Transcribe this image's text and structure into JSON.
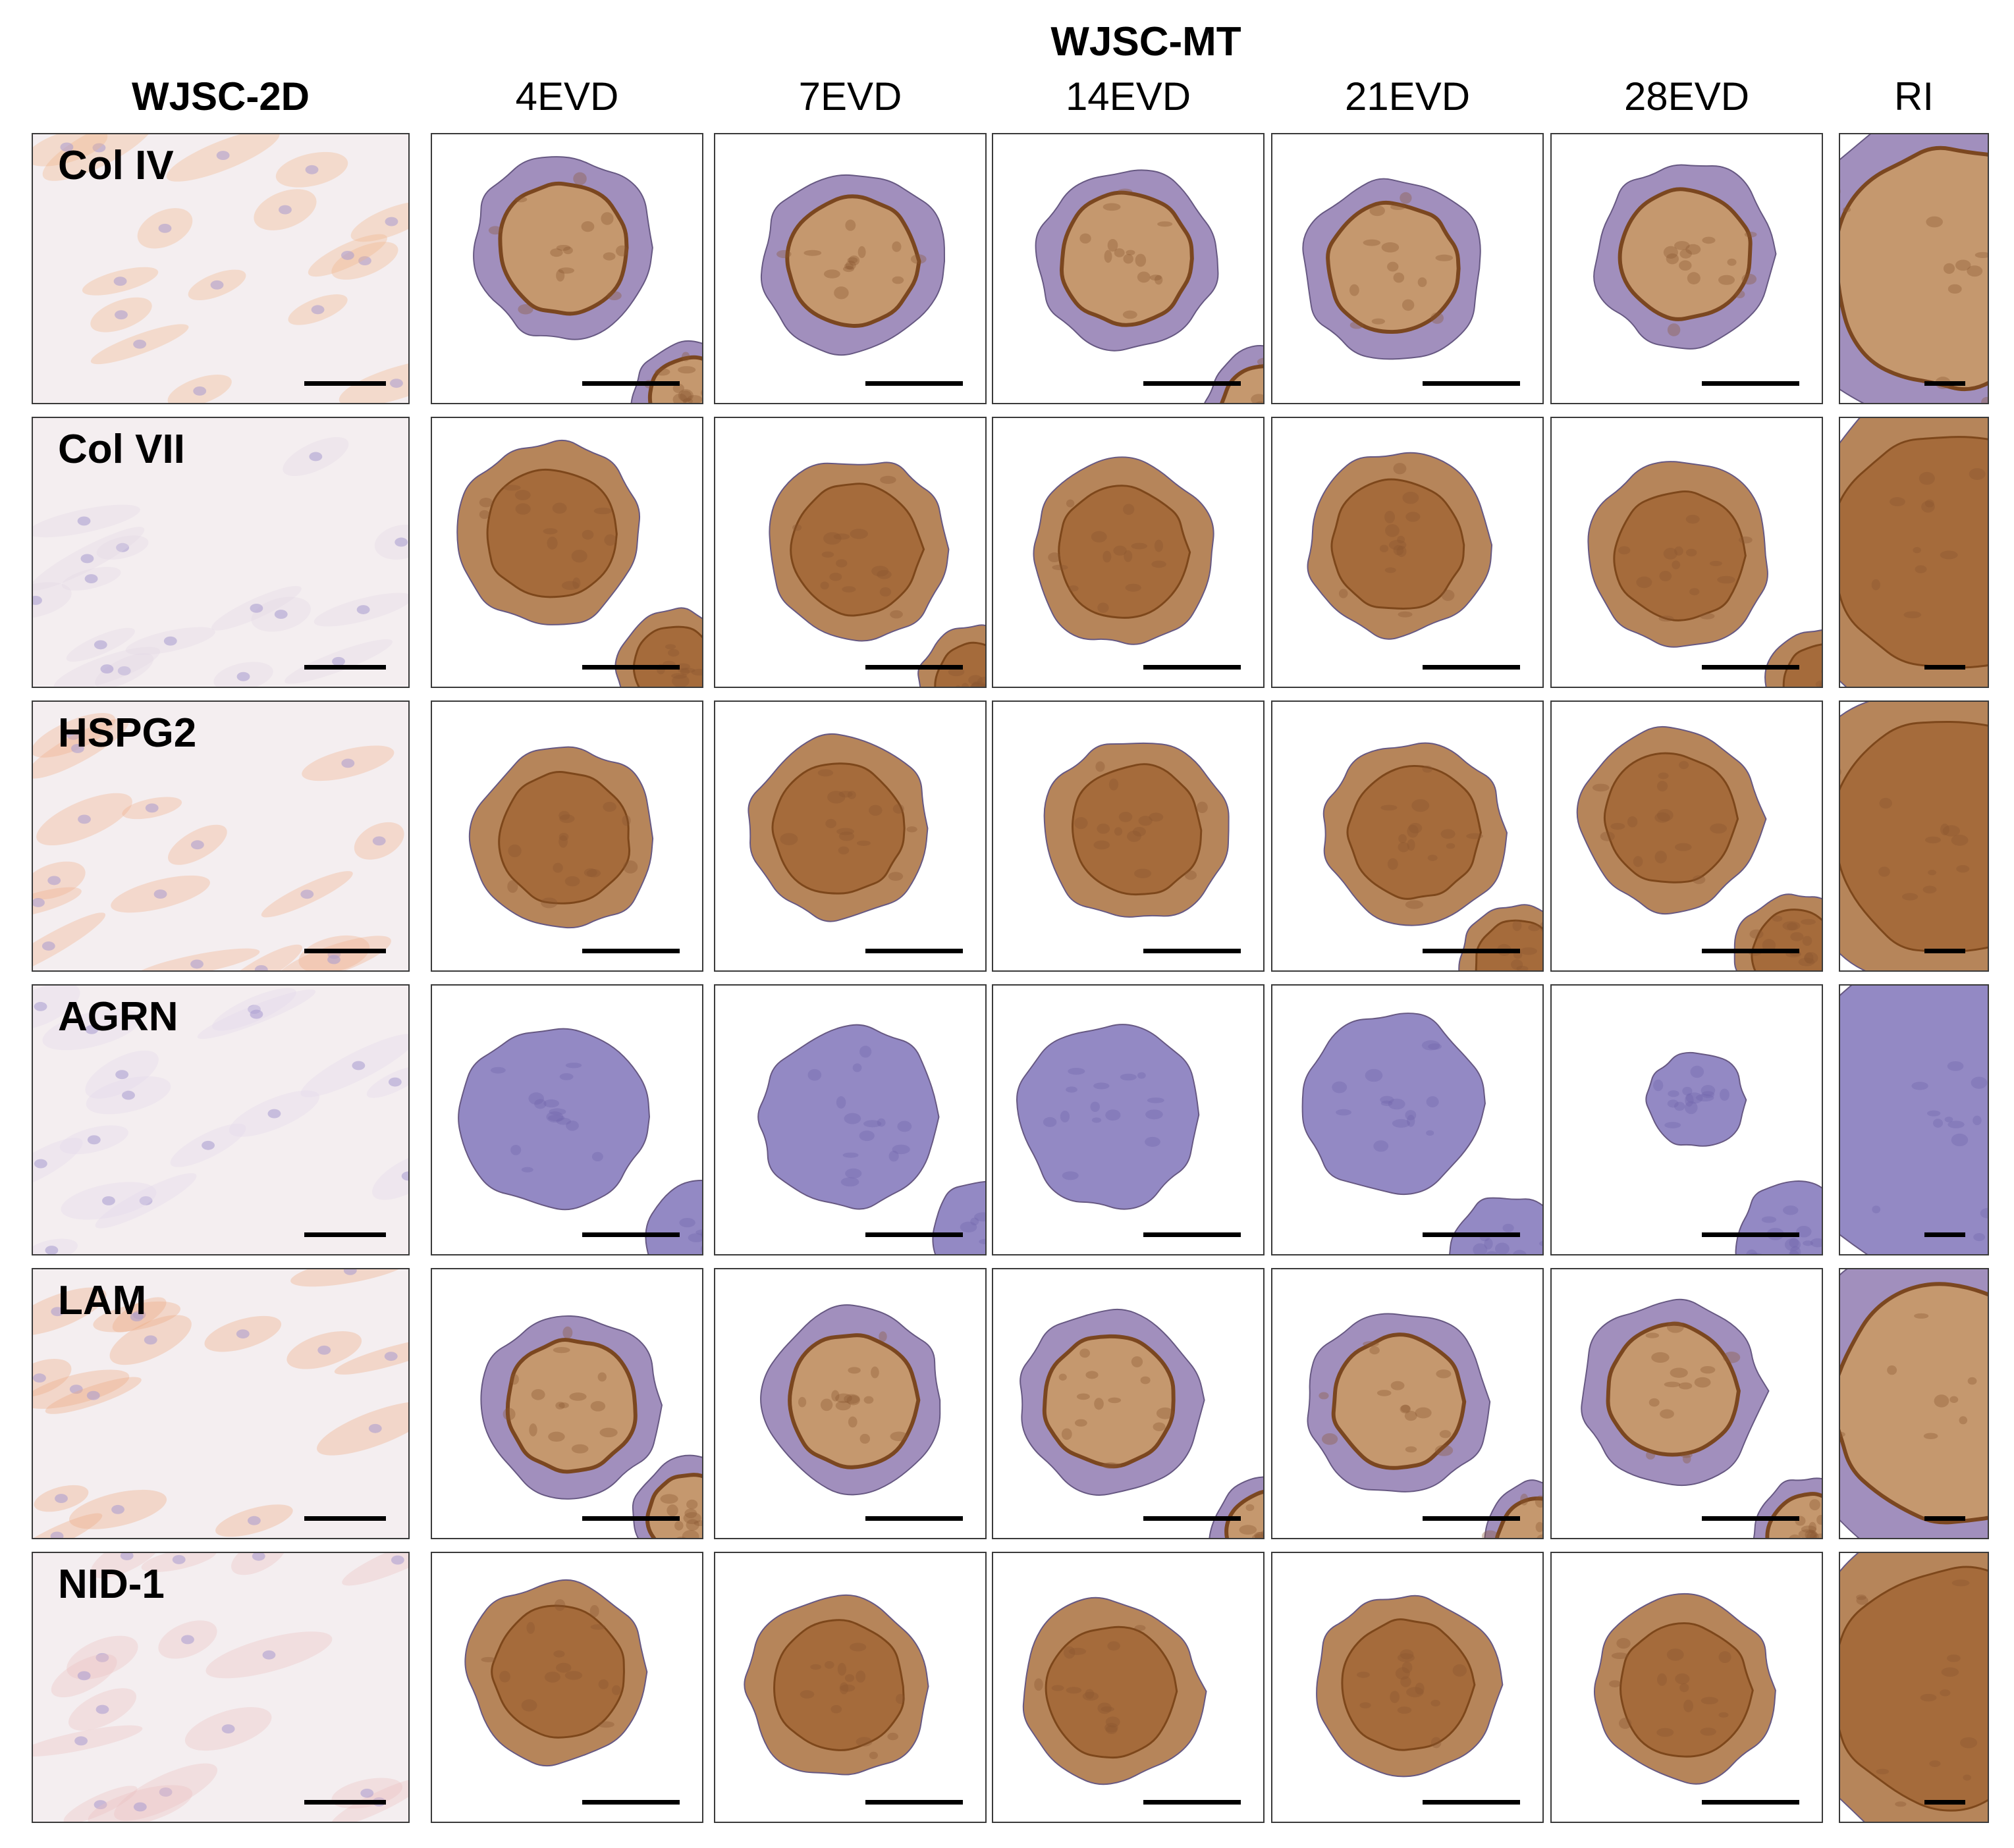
{
  "group_title": "WJSC-MT",
  "columns": [
    {
      "key": "2d",
      "label": "WJSC-2D",
      "bold": true
    },
    {
      "key": "4",
      "label": "4EVD",
      "bold": false
    },
    {
      "key": "7",
      "label": "7EVD",
      "bold": false
    },
    {
      "key": "14",
      "label": "14EVD",
      "bold": false
    },
    {
      "key": "21",
      "label": "21EVD",
      "bold": false
    },
    {
      "key": "28",
      "label": "28EVD",
      "bold": false
    },
    {
      "key": "ri",
      "label": "RI",
      "bold": false
    }
  ],
  "rows": [
    {
      "label": "Col IV"
    },
    {
      "label": "Col VII"
    },
    {
      "label": "HSPG2"
    },
    {
      "label": "AGRN"
    },
    {
      "label": "LAM"
    },
    {
      "label": "NID-1"
    }
  ],
  "colors": {
    "hematoxylin": "#8a7fc0",
    "dab": "#a56a3a",
    "dab_dark": "#7a4418",
    "background": "#ffffff",
    "culture_bg": "#f4eef0"
  },
  "stain": {
    "rows": [
      "mixed",
      "brown",
      "brown",
      "purple",
      "mixed",
      "brown"
    ]
  }
}
